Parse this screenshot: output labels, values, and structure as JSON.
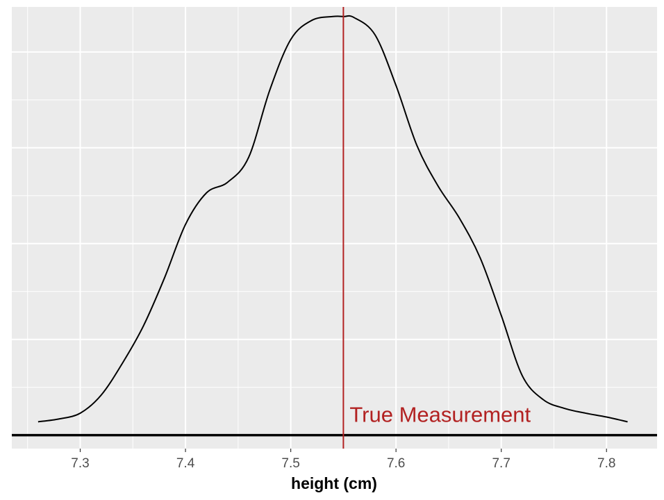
{
  "chart_data": {
    "type": "area",
    "title": "",
    "xlabel": "height (cm)",
    "ylabel": "",
    "xlim": [
      7.235,
      7.848
    ],
    "ylim": [
      -0.14,
      4.47
    ],
    "x_ticks": [
      "7.3",
      "7.4",
      "7.5",
      "7.6",
      "7.7",
      "7.8"
    ],
    "grid": true,
    "legend": "none",
    "density_curve": {
      "x": [
        7.26,
        7.28,
        7.3,
        7.32,
        7.34,
        7.36,
        7.38,
        7.4,
        7.42,
        7.44,
        7.46,
        7.48,
        7.5,
        7.52,
        7.54,
        7.55,
        7.56,
        7.58,
        7.6,
        7.62,
        7.64,
        7.66,
        7.68,
        7.7,
        7.72,
        7.74,
        7.76,
        7.78,
        7.8,
        7.82
      ],
      "y": [
        0.14,
        0.17,
        0.23,
        0.42,
        0.75,
        1.14,
        1.64,
        2.2,
        2.53,
        2.64,
        2.9,
        3.6,
        4.13,
        4.33,
        4.37,
        4.37,
        4.36,
        4.18,
        3.65,
        3.02,
        2.6,
        2.27,
        1.85,
        1.25,
        0.62,
        0.37,
        0.28,
        0.23,
        0.19,
        0.14
      ]
    },
    "reference_line": {
      "x": 7.55,
      "label": "True Measurement",
      "color": "#b22222"
    },
    "baseline_y": 0,
    "colors": {
      "panel": "#ebebeb",
      "grid": "#ffffff",
      "curve": "#000000",
      "baseline": "#000000"
    }
  }
}
